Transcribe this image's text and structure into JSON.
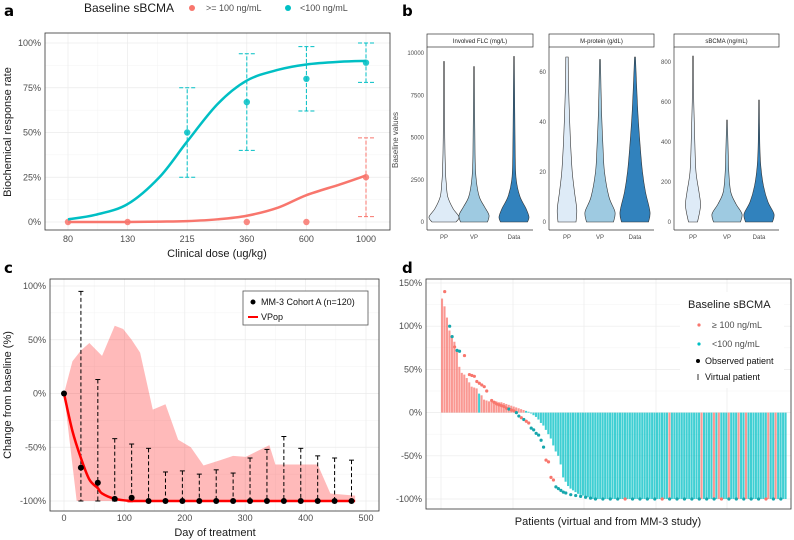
{
  "panel_labels": [
    "a",
    "b",
    "c",
    "d"
  ],
  "chart_data": [
    {
      "panel": "a",
      "type": "line",
      "xlabel": "Clinical dose (ug/kg)",
      "ylabel": "Biochemical response rate",
      "categories": [
        "80",
        "130",
        "215",
        "360",
        "600",
        "1000"
      ],
      "yticks": [
        "0%",
        "25%",
        "50%",
        "75%",
        "100%"
      ],
      "ylim": [
        0,
        100
      ],
      "grid": true,
      "legend": {
        "title": "Baseline sBCMA",
        "position": "top",
        "entries": [
          "&gt;= 100 ng/mL",
          "<100 ng/mL"
        ]
      },
      "curve_doses": [
        80,
        100,
        130,
        170,
        215,
        280,
        360,
        470,
        600,
        800,
        1000
      ],
      "series": [
        {
          "name": ">= 100 ng/mL",
          "color": "#f8766d",
          "curve": [
            0,
            0,
            0,
            0.2,
            0.5,
            1.5,
            3.5,
            8,
            15,
            21,
            26
          ],
          "points": [
            {
              "dose": "80",
              "y": 0
            },
            {
              "dose": "130",
              "y": 0
            },
            {
              "dose": "360",
              "y": 0
            },
            {
              "dose": "600",
              "y": 0
            },
            {
              "dose": "1000",
              "y": 25,
              "lo": 3,
              "hi": 47
            }
          ]
        },
        {
          "name": "<100 ng/mL",
          "color": "#00bfc4",
          "curve": [
            1.5,
            4,
            10,
            25,
            45,
            66,
            79,
            85,
            88,
            89.5,
            90
          ],
          "points": [
            {
              "dose": "215",
              "y": 50,
              "lo": 25,
              "hi": 75
            },
            {
              "dose": "360",
              "y": 67,
              "lo": 40,
              "hi": 94
            },
            {
              "dose": "600",
              "y": 80,
              "lo": 62,
              "hi": 98
            },
            {
              "dose": "1000",
              "y": 89,
              "lo": 78,
              "hi": 100
            }
          ]
        }
      ]
    },
    {
      "panel": "b",
      "type": "violin",
      "ylabel": "Baseline values",
      "categories": [
        "PP",
        "VP",
        "Data"
      ],
      "colors": [
        "#deebf7",
        "#9ecae1",
        "#3182bd"
      ],
      "facets": [
        {
          "title": "Involved FLC (mg/L)",
          "yticks": [
            0,
            2500,
            5000,
            7500,
            10000
          ],
          "ymax": 10000,
          "violins": [
            [
              [
                0,
                0.8
              ],
              [
                300,
                1
              ],
              [
                800,
                0.6
              ],
              [
                1500,
                0.25
              ],
              [
                2300,
                0.15
              ],
              [
                3000,
                0.1
              ],
              [
                5000,
                0.05
              ],
              [
                9500,
                0.02
              ]
            ],
            [
              [
                0,
                0.9
              ],
              [
                400,
                1
              ],
              [
                900,
                0.7
              ],
              [
                1500,
                0.35
              ],
              [
                2500,
                0.15
              ],
              [
                4000,
                0.07
              ],
              [
                9200,
                0.02
              ]
            ],
            [
              [
                0,
                0.9
              ],
              [
                300,
                1
              ],
              [
                800,
                0.8
              ],
              [
                1500,
                0.4
              ],
              [
                2500,
                0.15
              ],
              [
                4000,
                0.08
              ],
              [
                9800,
                0.02
              ]
            ]
          ]
        },
        {
          "title": "M-protein (g/dL)",
          "yticks": [
            0,
            20,
            40,
            60
          ],
          "ymax": 67,
          "violins": [
            [
              [
                0,
                0.6
              ],
              [
                5,
                0.65
              ],
              [
                12,
                0.5
              ],
              [
                20,
                0.35
              ],
              [
                30,
                0.25
              ],
              [
                40,
                0.18
              ],
              [
                55,
                0.1
              ],
              [
                66,
                0.08
              ]
            ],
            [
              [
                0,
                0.9
              ],
              [
                4,
                1
              ],
              [
                10,
                0.6
              ],
              [
                20,
                0.3
              ],
              [
                30,
                0.2
              ],
              [
                45,
                0.1
              ],
              [
                65,
                0.03
              ]
            ],
            [
              [
                0,
                0.9
              ],
              [
                4,
                1
              ],
              [
                12,
                0.7
              ],
              [
                20,
                0.5
              ],
              [
                30,
                0.35
              ],
              [
                45,
                0.18
              ],
              [
                66,
                0.03
              ]
            ]
          ]
        },
        {
          "title": "sBCMA (ng/mL)",
          "yticks": [
            0,
            200,
            400,
            600,
            800
          ],
          "ymax": 850,
          "violins": [
            [
              [
                0,
                0.3
              ],
              [
                80,
                0.5
              ],
              [
                150,
                0.4
              ],
              [
                250,
                0.2
              ],
              [
                400,
                0.12
              ],
              [
                600,
                0.05
              ],
              [
                830,
                0.02
              ]
            ],
            [
              [
                0,
                0.9
              ],
              [
                40,
                1
              ],
              [
                90,
                0.6
              ],
              [
                150,
                0.25
              ],
              [
                250,
                0.12
              ],
              [
                350,
                0.08
              ],
              [
                510,
                0.02
              ]
            ],
            [
              [
                0,
                0.9
              ],
              [
                40,
                1
              ],
              [
                100,
                0.6
              ],
              [
                180,
                0.3
              ],
              [
                280,
                0.12
              ],
              [
                400,
                0.05
              ],
              [
                610,
                0.02
              ]
            ]
          ]
        }
      ]
    },
    {
      "panel": "c",
      "type": "line",
      "xlabel": "Day of treatment",
      "ylabel": "Change from baseline (%)",
      "xlim": [
        0,
        500
      ],
      "xticks": [
        0,
        100,
        200,
        300,
        400,
        500
      ],
      "yticks": [
        "-100%",
        "-50%",
        "0%",
        "50%",
        "100%"
      ],
      "ylim": [
        -100,
        100
      ],
      "grid": true,
      "legend": {
        "position": "top-right",
        "entries": [
          "MM-3 Cohort A (n=120)",
          "VPop"
        ]
      },
      "observed": {
        "day": [
          0,
          28,
          56,
          84,
          112,
          140,
          168,
          196,
          224,
          252,
          280,
          308,
          336,
          364,
          392,
          420,
          448,
          476
        ],
        "mean": [
          0,
          -69,
          -83,
          -98,
          -97,
          -100,
          -100,
          -100,
          -100,
          -100,
          -100,
          -100,
          -100,
          -100,
          -100,
          -100,
          -100,
          -100
        ],
        "upper": [
          0,
          95,
          13,
          -42,
          -47,
          -51,
          -73,
          -72,
          -75,
          -71,
          -74,
          -60,
          -52,
          -40,
          -51,
          -58,
          -60,
          -62
        ],
        "lower": [
          0,
          -100,
          -100,
          -100,
          -100,
          -100,
          -100,
          -100,
          -100,
          -100,
          -100,
          -100,
          -100,
          -100,
          -100,
          -100,
          -100,
          -100
        ]
      },
      "vpop": {
        "color": "#ff0000",
        "day": [
          0,
          14,
          28,
          42,
          56,
          63,
          84,
          112,
          140,
          482
        ],
        "median": [
          0,
          -35,
          -60,
          -80,
          -88,
          -93,
          -98,
          -100,
          -100,
          -100
        ],
        "band_day": [
          0,
          14,
          28,
          42,
          63,
          84,
          98,
          112,
          126,
          147,
          168,
          189,
          210,
          231,
          259,
          280,
          301,
          322,
          340,
          350,
          420,
          441,
          482
        ],
        "band_upper": [
          0,
          30,
          40,
          47,
          35,
          63,
          60,
          50,
          38,
          -15,
          -10,
          -43,
          -50,
          -67,
          -62,
          -58,
          -59,
          -53,
          -48,
          -66,
          -66,
          -93,
          -95
        ],
        "band_lower_day": [
          0,
          21,
          482
        ],
        "band_lower": [
          0,
          -100,
          -100
        ]
      }
    },
    {
      "panel": "d",
      "type": "bar",
      "xlabel": "Patients (virtual and from MM-3 study)",
      "yticks": [
        "-100%",
        "-50%",
        "0%",
        "50%",
        "100%",
        "150%"
      ],
      "ylim": [
        -100,
        150
      ],
      "grid": true,
      "legend": {
        "title": "Baseline sBCMA",
        "position": "top-right",
        "entries": [
          "≥ 100 ng/mL",
          "<100 ng/mL",
          "Observed patient",
          "Virtual patient"
        ]
      },
      "colors": {
        "high": "#f8766d",
        "low": "#00bfc4"
      },
      "virtual_values": [
        132,
        123,
        110,
        95,
        88,
        82,
        72,
        53,
        46,
        44,
        40,
        35,
        30,
        29,
        28,
        22,
        20,
        15,
        14,
        13,
        13,
        13,
        13,
        12,
        12,
        11,
        10,
        9,
        8,
        7,
        6,
        5,
        4,
        3,
        2,
        1,
        -1,
        -3,
        -5,
        -8,
        -12,
        -15,
        -20,
        -25,
        -30,
        -38,
        -45,
        -50,
        -60,
        -75,
        -80,
        -85,
        -88,
        -90,
        -92,
        -94,
        -95,
        -96,
        -97,
        -98
      ],
      "virtual_fill_value": -100,
      "virtual_count": 140,
      "virtual_high_indices": [
        0,
        1,
        2,
        3,
        4,
        5,
        6,
        7,
        8,
        9,
        10,
        11,
        12,
        13,
        14,
        16,
        17,
        18,
        19,
        20,
        21,
        22,
        23,
        24,
        25,
        26,
        27,
        28,
        29,
        30,
        31,
        32,
        33,
        92,
        105,
        110,
        112,
        116,
        120,
        123,
        132,
        135
      ],
      "observed": [
        [
          1,
          140,
          "h"
        ],
        [
          3,
          100,
          "l"
        ],
        [
          4,
          88,
          "l"
        ],
        [
          5,
          76,
          "h"
        ],
        [
          6,
          72,
          "l"
        ],
        [
          7,
          71,
          "l"
        ],
        [
          9,
          66,
          "h"
        ],
        [
          11,
          44,
          "h"
        ],
        [
          12,
          43,
          "h"
        ],
        [
          13,
          42,
          "h"
        ],
        [
          14,
          36,
          "h"
        ],
        [
          15,
          34,
          "h"
        ],
        [
          16,
          32,
          "h"
        ],
        [
          17,
          30,
          "h"
        ],
        [
          18,
          25,
          "h"
        ],
        [
          20,
          14,
          "h"
        ],
        [
          21,
          12,
          "h"
        ],
        [
          22,
          10,
          "h"
        ],
        [
          23,
          9,
          "h"
        ],
        [
          24,
          8,
          "h"
        ],
        [
          25,
          7,
          "h"
        ],
        [
          26,
          5,
          "h"
        ],
        [
          27,
          4,
          "l"
        ],
        [
          28,
          3,
          "h"
        ],
        [
          29,
          2,
          "h"
        ],
        [
          30,
          0,
          "l"
        ],
        [
          31,
          -4,
          "l"
        ],
        [
          32,
          -6,
          "h"
        ],
        [
          33,
          -8,
          "l"
        ],
        [
          34,
          -10,
          "h"
        ],
        [
          35,
          -12,
          "h"
        ],
        [
          36,
          -18,
          "l"
        ],
        [
          37,
          -20,
          "l"
        ],
        [
          38,
          -24,
          "l"
        ],
        [
          39,
          -26,
          "l"
        ],
        [
          40,
          -32,
          "l"
        ],
        [
          41,
          -40,
          "l"
        ],
        [
          42,
          -55,
          "h"
        ],
        [
          43,
          -57,
          "h"
        ],
        [
          44,
          -75,
          "h"
        ],
        [
          45,
          -78,
          "h"
        ],
        [
          46,
          -86,
          "l"
        ],
        [
          47,
          -88,
          "l"
        ],
        [
          48,
          -90,
          "l"
        ],
        [
          49,
          -92,
          "l"
        ],
        [
          50,
          -93,
          "l"
        ],
        [
          52,
          -95,
          "l"
        ],
        [
          54,
          -96,
          "l"
        ],
        [
          56,
          -97,
          "l"
        ],
        [
          58,
          -98,
          "l"
        ],
        [
          60,
          -99,
          "l"
        ],
        [
          62,
          -100,
          "l"
        ],
        [
          65,
          -100,
          "l"
        ],
        [
          68,
          -100,
          "l"
        ],
        [
          71,
          -100,
          "l"
        ],
        [
          74,
          -100,
          "h"
        ],
        [
          77,
          -100,
          "l"
        ],
        [
          80,
          -100,
          "l"
        ],
        [
          83,
          -100,
          "l"
        ],
        [
          86,
          -100,
          "l"
        ],
        [
          89,
          -100,
          "h"
        ],
        [
          92,
          -100,
          "l"
        ],
        [
          95,
          -100,
          "l"
        ],
        [
          98,
          -100,
          "l"
        ],
        [
          101,
          -100,
          "l"
        ],
        [
          104,
          -100,
          "l"
        ],
        [
          107,
          -100,
          "l"
        ],
        [
          110,
          -100,
          "l"
        ],
        [
          113,
          -100,
          "h"
        ],
        [
          116,
          -100,
          "l"
        ],
        [
          119,
          -100,
          "l"
        ],
        [
          122,
          -100,
          "l"
        ],
        [
          125,
          -100,
          "l"
        ],
        [
          128,
          -100,
          "l"
        ],
        [
          131,
          -100,
          "h"
        ],
        [
          134,
          -100,
          "l"
        ],
        [
          137,
          -100,
          "l"
        ]
      ]
    }
  ]
}
